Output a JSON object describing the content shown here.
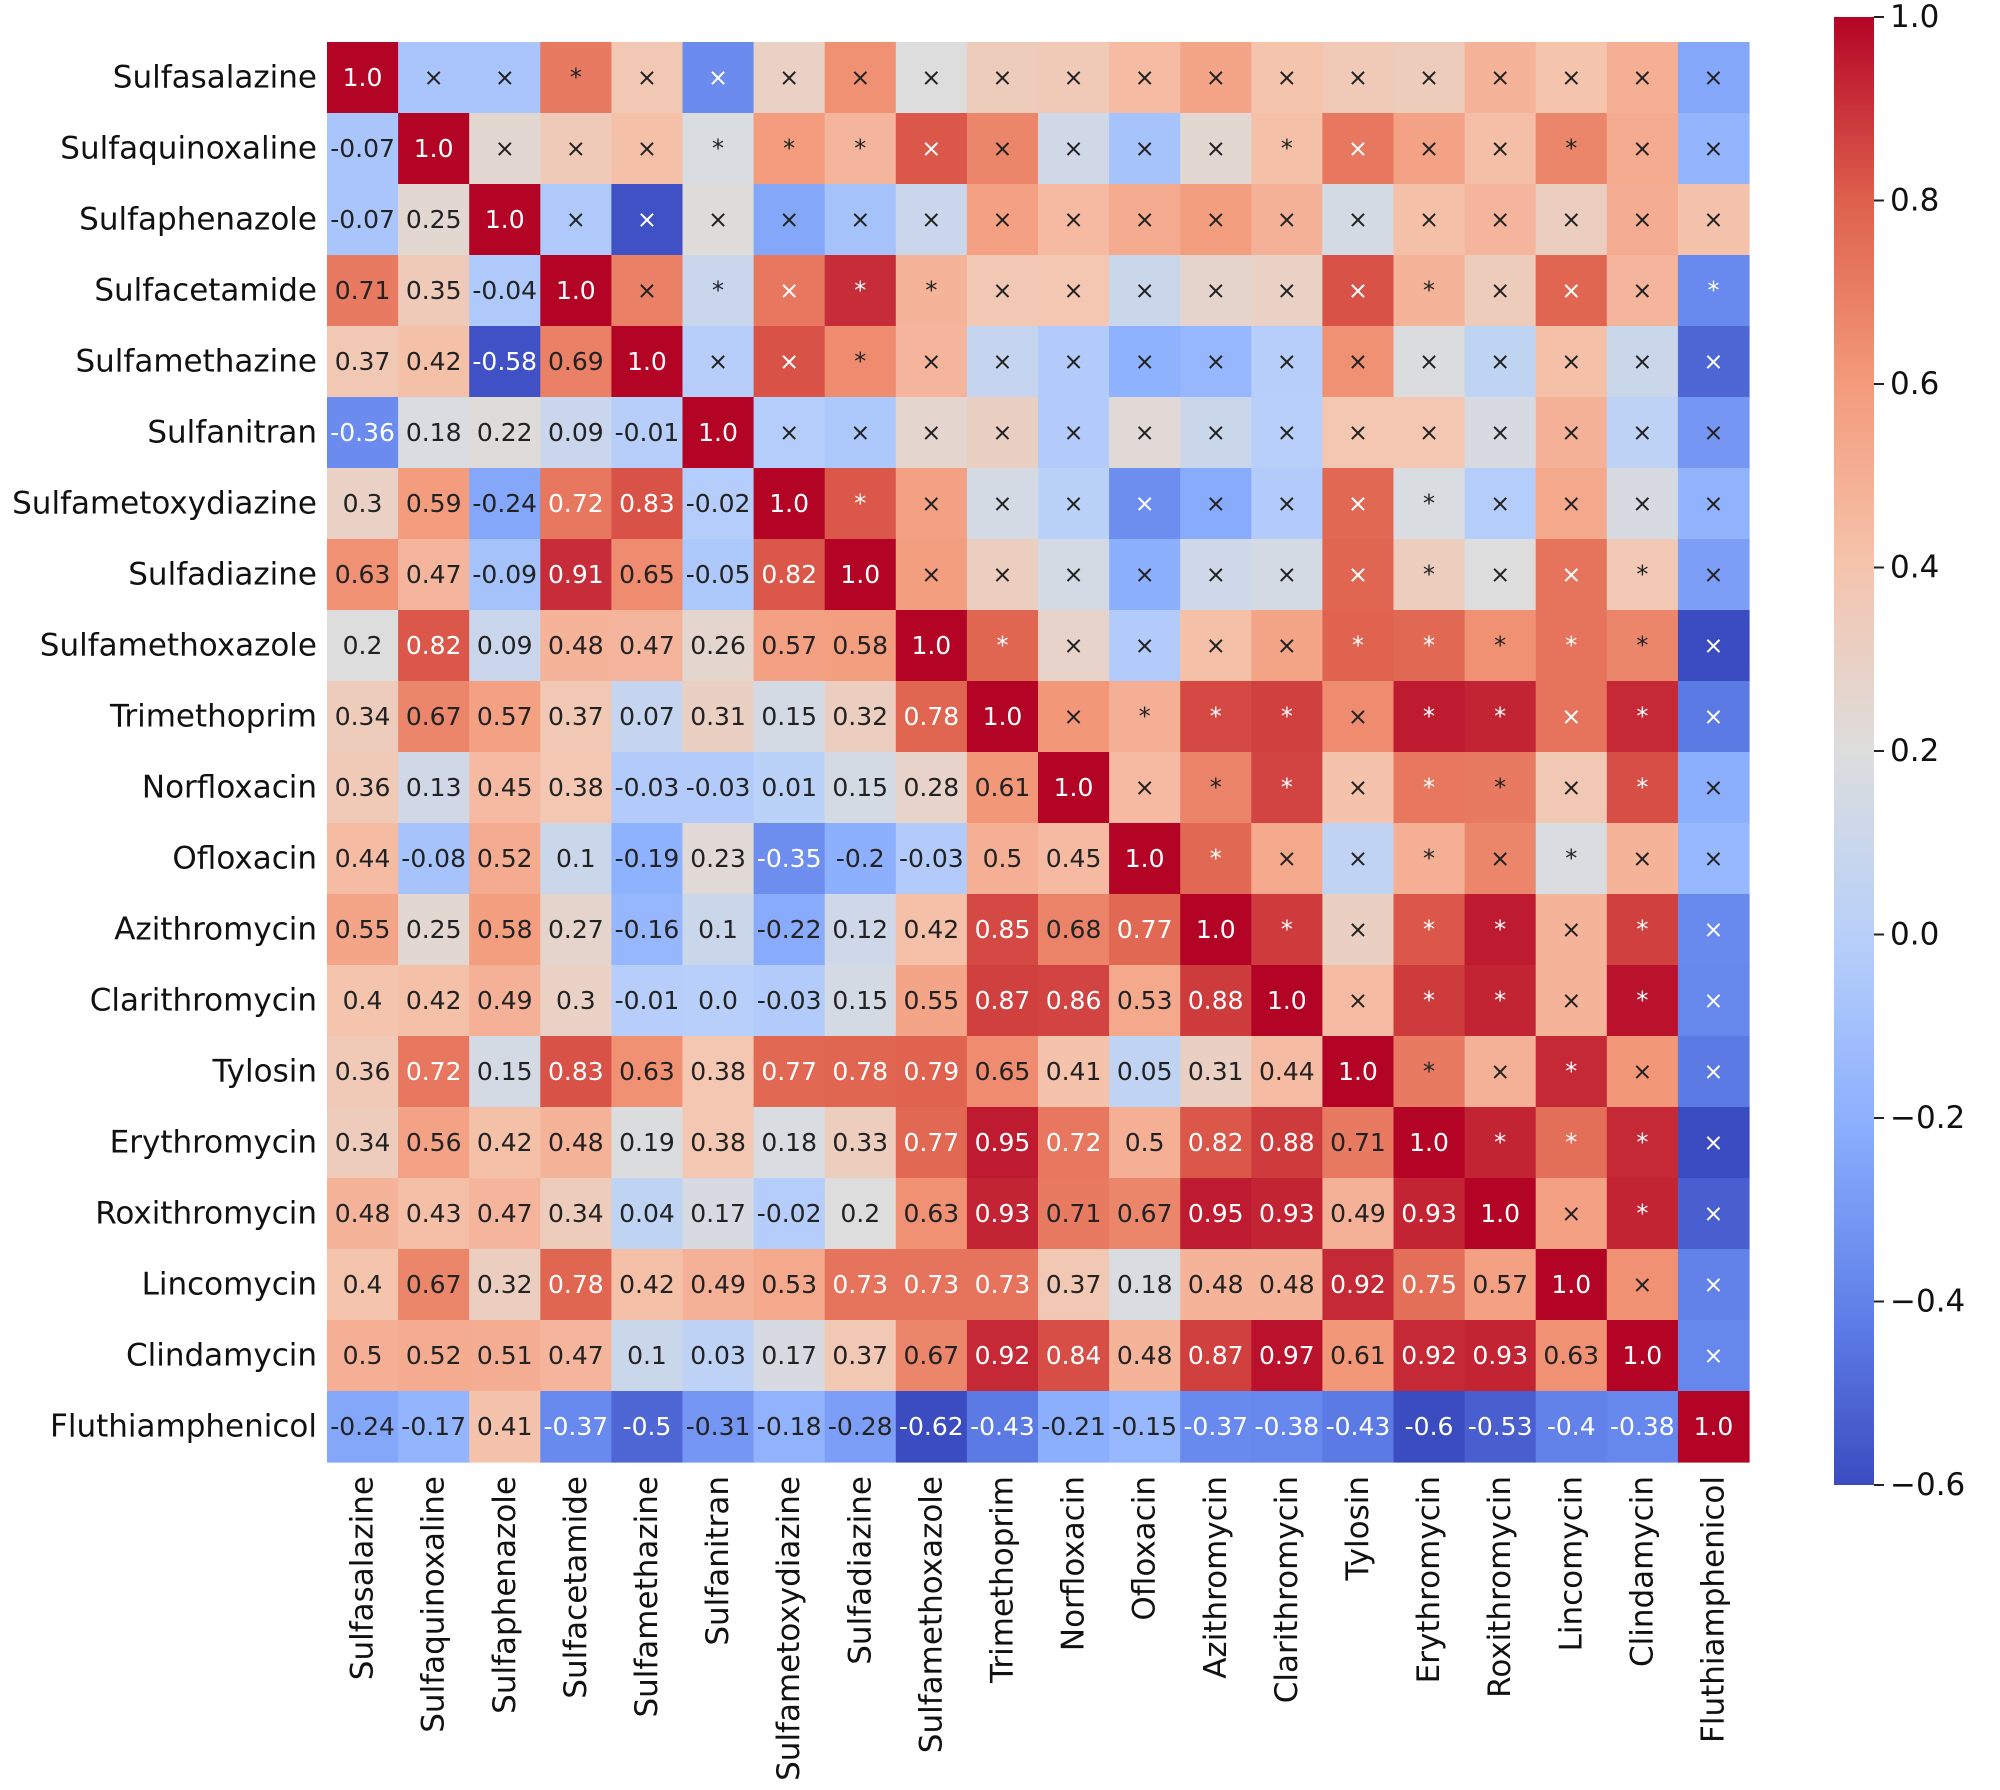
{
  "chart_data": {
    "type": "heatmap",
    "title": "",
    "xlabel": "",
    "ylabel": "",
    "labels": [
      "Sulfasalazine",
      "Sulfaquinoxaline",
      "Sulfaphenazole",
      "Sulfacetamide",
      "Sulfamethazine",
      "Sulfanitran",
      "Sulfametoxydiazine",
      "Sulfadiazine",
      "Sulfamethoxazole",
      "Trimethoprim",
      "Norfloxacin",
      "Ofloxacin",
      "Azithromycin",
      "Clarithromycin",
      "Tylosin",
      "Erythromycin",
      "Roxithromycin",
      "Lincomycin",
      "Clindamycin",
      "Fluthiamphenicol"
    ],
    "lower_labels": [
      [
        "1.0"
      ],
      [
        "-0.07",
        "1.0"
      ],
      [
        "-0.07",
        "0.25",
        "1.0"
      ],
      [
        "0.71",
        "0.35",
        "-0.04",
        "1.0"
      ],
      [
        "0.37",
        "0.42",
        "-0.58",
        "0.69",
        "1.0"
      ],
      [
        "-0.36",
        "0.18",
        "0.22",
        "0.09",
        "-0.01",
        "1.0"
      ],
      [
        "0.3",
        "0.59",
        "-0.24",
        "0.72",
        "0.83",
        "-0.02",
        "1.0"
      ],
      [
        "0.63",
        "0.47",
        "-0.09",
        "0.91",
        "0.65",
        "-0.05",
        "0.82",
        "1.0"
      ],
      [
        "0.2",
        "0.82",
        "0.09",
        "0.48",
        "0.47",
        "0.26",
        "0.57",
        "0.58",
        "1.0"
      ],
      [
        "0.34",
        "0.67",
        "0.57",
        "0.37",
        "0.07",
        "0.31",
        "0.15",
        "0.32",
        "0.78",
        "1.0"
      ],
      [
        "0.36",
        "0.13",
        "0.45",
        "0.38",
        "-0.03",
        "-0.03",
        "0.01",
        "0.15",
        "0.28",
        "0.61",
        "1.0"
      ],
      [
        "0.44",
        "-0.08",
        "0.52",
        "0.1",
        "-0.19",
        "0.23",
        "-0.35",
        "-0.2",
        "-0.03",
        "0.5",
        "0.45",
        "1.0"
      ],
      [
        "0.55",
        "0.25",
        "0.58",
        "0.27",
        "-0.16",
        "0.1",
        "-0.22",
        "0.12",
        "0.42",
        "0.85",
        "0.68",
        "0.77",
        "1.0"
      ],
      [
        "0.4",
        "0.42",
        "0.49",
        "0.3",
        "-0.01",
        "0.0",
        "-0.03",
        "0.15",
        "0.55",
        "0.87",
        "0.86",
        "0.53",
        "0.88",
        "1.0"
      ],
      [
        "0.36",
        "0.72",
        "0.15",
        "0.83",
        "0.63",
        "0.38",
        "0.77",
        "0.78",
        "0.79",
        "0.65",
        "0.41",
        "0.05",
        "0.31",
        "0.44",
        "1.0"
      ],
      [
        "0.34",
        "0.56",
        "0.42",
        "0.48",
        "0.19",
        "0.38",
        "0.18",
        "0.33",
        "0.77",
        "0.95",
        "0.72",
        "0.5",
        "0.82",
        "0.88",
        "0.71",
        "1.0"
      ],
      [
        "0.48",
        "0.43",
        "0.47",
        "0.34",
        "0.04",
        "0.17",
        "-0.02",
        "0.2",
        "0.63",
        "0.93",
        "0.71",
        "0.67",
        "0.95",
        "0.93",
        "0.49",
        "0.93",
        "1.0"
      ],
      [
        "0.4",
        "0.67",
        "0.32",
        "0.78",
        "0.42",
        "0.49",
        "0.53",
        "0.73",
        "0.73",
        "0.73",
        "0.37",
        "0.18",
        "0.48",
        "0.48",
        "0.92",
        "0.75",
        "0.57",
        "1.0"
      ],
      [
        "0.5",
        "0.52",
        "0.51",
        "0.47",
        "0.1",
        "0.03",
        "0.17",
        "0.37",
        "0.67",
        "0.92",
        "0.84",
        "0.48",
        "0.87",
        "0.97",
        "0.61",
        "0.92",
        "0.93",
        "0.63",
        "1.0"
      ],
      [
        "-0.24",
        "-0.17",
        "0.41",
        "-0.37",
        "-0.5",
        "-0.31",
        "-0.18",
        "-0.28",
        "-0.62",
        "-0.43",
        "-0.21",
        "-0.15",
        "-0.37",
        "-0.38",
        "-0.43",
        "-0.6",
        "-0.53",
        "-0.4",
        "-0.38",
        "1.0"
      ]
    ],
    "upper_marks": [
      "",
      "xx*xxxxxxxxxxxxxxxx",
      "",
      "",
      "xxx***xxxxx*xxx*xx",
      "",
      "",
      "",
      "xxxxxxxxxxxxxxxxx",
      "",
      "",
      "",
      "",
      "x*x**xxxxxx*xxx*xx",
      "",
      "",
      "",
      "",
      "",
      "xx*xxxxxxxxxxxxx",
      "",
      "",
      "",
      "",
      "",
      "",
      "xxxxxxxxxxxxxxx",
      "",
      "",
      "",
      "",
      "",
      "",
      "",
      "*xxxxxxx*xxxxxx",
      "",
      "",
      "",
      "",
      "",
      "",
      "",
      "",
      "xxxxxxx*xx*xx",
      "",
      "",
      "",
      "",
      "",
      "",
      "",
      "",
      "",
      "*xxxx*****x",
      "",
      "",
      "",
      "",
      "",
      "",
      "",
      "",
      "",
      "",
      "x***x**x*x",
      "",
      "",
      "",
      "",
      "",
      "",
      "",
      "",
      "",
      "",
      "",
      "x**x**x*x",
      "",
      "",
      "",
      "",
      "",
      "",
      "",
      "",
      "",
      "",
      "",
      "",
      "*xx*x*xx",
      "",
      "",
      "",
      "",
      "",
      "",
      "",
      "",
      "",
      "",
      "",
      "",
      "",
      "*x**x*x",
      "",
      "",
      "",
      "",
      "",
      "",
      "",
      "",
      "",
      "",
      "",
      "",
      "",
      "",
      "x**x*x",
      "",
      "",
      "",
      "",
      "",
      "",
      "",
      "",
      "",
      "",
      "",
      "",
      "",
      "",
      "",
      "*x*xx",
      "",
      "",
      "",
      "",
      "",
      "",
      "",
      "",
      "",
      "",
      "",
      "",
      "",
      "",
      "",
      "",
      "***x",
      "",
      "",
      "",
      "",
      "",
      "",
      "",
      "",
      "",
      "",
      "",
      "",
      "",
      "",
      "",
      "",
      "",
      "x*x",
      "",
      "",
      "",
      "",
      "",
      "",
      "",
      "",
      "",
      "",
      "",
      "",
      "",
      "",
      "",
      "",
      "",
      "",
      "xx",
      "",
      "",
      "",
      "",
      "",
      "",
      "",
      "",
      "",
      "",
      "",
      "",
      "",
      "",
      "",
      "",
      "",
      "",
      "",
      "x"
    ],
    "colorbar": {
      "min": -0.6,
      "max": 1.0,
      "ticks": [
        1.0,
        0.8,
        0.6,
        0.4,
        0.2,
        0.0,
        -0.2,
        -0.4,
        -0.6
      ],
      "tick_labels": [
        "1.0",
        "0.8",
        "0.6",
        "0.4",
        "0.2",
        "0.0",
        "−0.2",
        "−0.4",
        "−0.6"
      ],
      "colormap": "coolwarm"
    },
    "colors": {
      "low": "#3b4cc0",
      "mid": "#dddddd",
      "high": "#b40426"
    }
  }
}
